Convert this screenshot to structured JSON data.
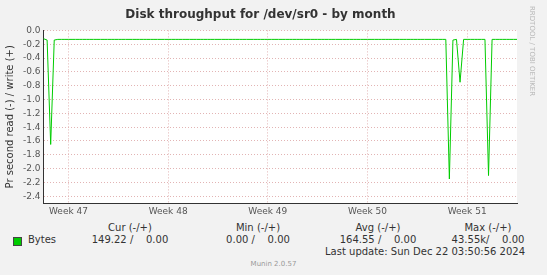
{
  "chart_data": {
    "type": "line",
    "title": "Disk throughput for /dev/sr0 - by month",
    "y_label": "Pr second read (-) / write (+)",
    "grid": true,
    "categories": [
      null,
      null,
      null,
      null,
      null,
      null,
      null,
      "Week 47",
      null,
      null,
      null,
      null,
      null,
      null,
      null,
      null,
      null,
      null,
      null,
      null,
      null,
      null,
      null,
      null,
      null,
      null,
      null,
      null,
      null,
      null,
      null,
      null,
      null,
      null,
      null,
      "Week 48",
      null,
      null,
      null,
      null,
      null,
      null,
      null,
      null,
      null,
      null,
      null,
      null,
      null,
      null,
      null,
      null,
      null,
      null,
      null,
      null,
      null,
      null,
      null,
      null,
      null,
      null,
      null,
      "Week 49",
      null,
      null,
      null,
      null,
      null,
      null,
      null,
      null,
      null,
      null,
      null,
      null,
      null,
      null,
      null,
      null,
      null,
      null,
      null,
      null,
      null,
      null,
      null,
      null,
      null,
      null,
      null,
      "Week 50",
      null,
      null,
      null,
      null,
      null,
      null,
      null,
      null,
      null,
      null,
      null,
      null,
      null,
      null,
      null,
      null,
      null,
      null,
      null,
      null,
      null,
      null,
      null,
      null,
      null,
      null,
      null,
      "Week 51",
      null,
      null,
      null,
      null,
      null,
      null,
      null,
      null,
      null,
      null,
      null,
      null,
      null,
      null
    ],
    "series": [
      {
        "name": "Bytes",
        "color": "#00cc00",
        "values": [
          -0.12,
          -0.14,
          -1.65,
          -0.14,
          -0.13,
          -0.13,
          -0.13,
          -0.13,
          -0.13,
          -0.13,
          -0.13,
          -0.13,
          -0.13,
          -0.13,
          -0.13,
          -0.13,
          -0.13,
          -0.13,
          -0.13,
          -0.13,
          -0.13,
          -0.13,
          -0.13,
          -0.13,
          -0.13,
          -0.13,
          -0.13,
          -0.13,
          -0.13,
          -0.13,
          -0.13,
          -0.13,
          -0.13,
          -0.13,
          -0.13,
          -0.13,
          -0.13,
          -0.13,
          -0.13,
          -0.13,
          -0.13,
          -0.13,
          -0.13,
          -0.13,
          -0.13,
          -0.13,
          -0.13,
          -0.13,
          -0.13,
          -0.13,
          -0.13,
          -0.13,
          -0.13,
          -0.13,
          -0.13,
          -0.13,
          -0.13,
          -0.13,
          -0.13,
          -0.13,
          -0.13,
          -0.13,
          -0.13,
          -0.13,
          -0.13,
          -0.13,
          -0.13,
          -0.13,
          -0.13,
          -0.13,
          -0.13,
          -0.13,
          -0.13,
          -0.13,
          -0.13,
          -0.13,
          -0.13,
          -0.13,
          -0.13,
          -0.13,
          -0.13,
          -0.13,
          -0.13,
          -0.13,
          -0.13,
          -0.13,
          -0.13,
          -0.13,
          -0.13,
          -0.13,
          -0.13,
          -0.13,
          -0.13,
          -0.13,
          -0.13,
          -0.13,
          -0.13,
          -0.13,
          -0.13,
          -0.13,
          -0.13,
          -0.13,
          -0.13,
          -0.13,
          -0.13,
          -0.13,
          -0.13,
          -0.13,
          -0.13,
          -0.13,
          -0.13,
          -0.13,
          -0.13,
          -0.13,
          -2.15,
          -0.14,
          -0.13,
          -0.75,
          -0.13,
          -0.13,
          -0.13,
          -0.13,
          -0.13,
          -0.13,
          -0.13,
          -2.1,
          -0.13,
          -0.13,
          -0.13,
          -0.13,
          -0.13,
          -0.13,
          -0.13,
          -0.13
        ]
      }
    ],
    "ylim": [
      -2.5,
      0
    ],
    "yticks": [
      {
        "value": 0,
        "label": "0.0"
      },
      -0.2,
      -0.4,
      -0.6,
      -0.8,
      {
        "value": -1,
        "label": "-1.0"
      },
      -1.2,
      -1.4,
      -1.6,
      -1.8,
      {
        "value": -2,
        "label": "-2.0"
      },
      -2.2,
      -2.4
    ],
    "legend_table": {
      "headers": [
        "Cur (-/+)",
        "Min (-/+)",
        "Avg (-/+)",
        "Max (-/+)"
      ],
      "rows": [
        {
          "name": "Bytes",
          "color": "#00cc00",
          "cells": [
            "149.22 /    0.00",
            "0.00 /    0.00",
            "164.55 /    0.00",
            "43.55k/    0.00"
          ]
        }
      ]
    },
    "last_update": "Last update: Sun Dec 22 03:50:56 2024",
    "version": "Munin 2.0.57",
    "watermark": "RRDTOOL / TOBI OETIKER"
  }
}
